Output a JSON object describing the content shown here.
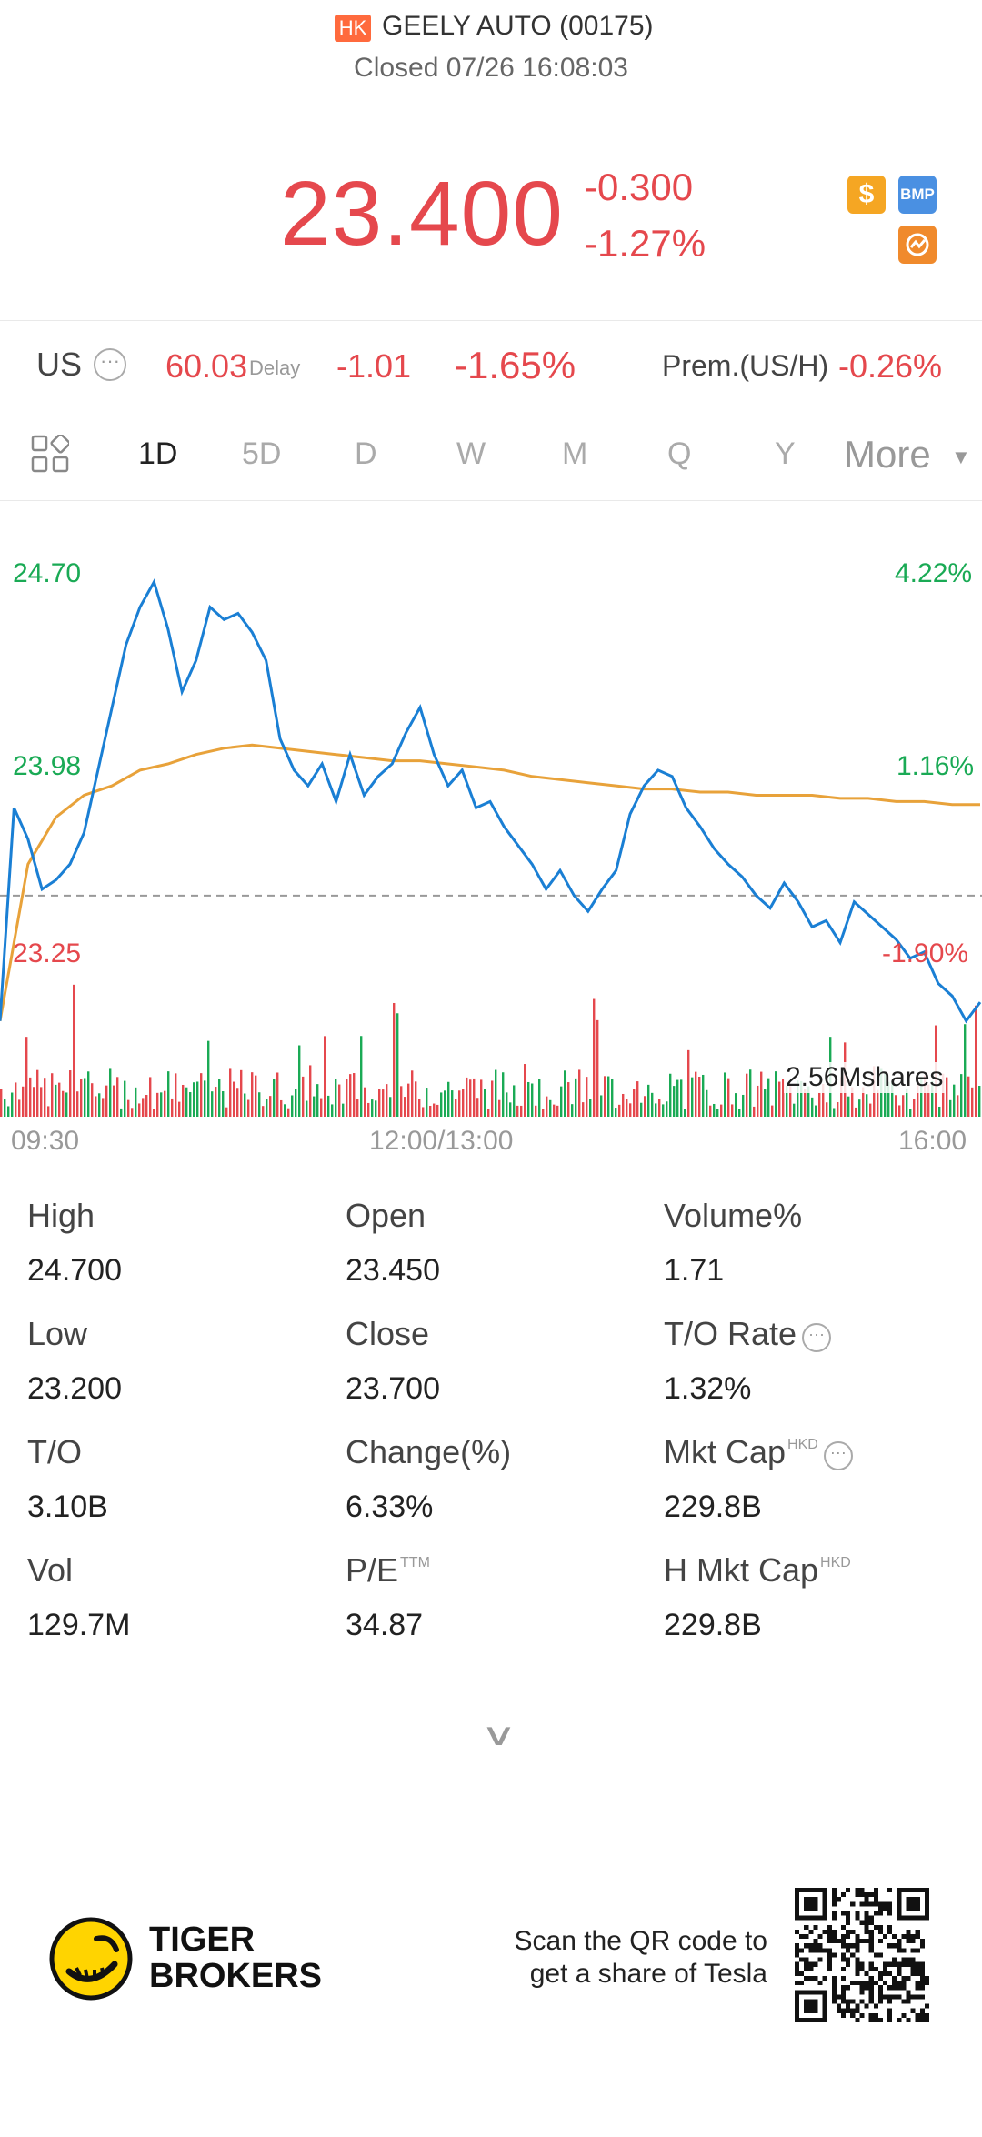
{
  "header": {
    "market_badge": "HK",
    "stock_name": "GEELY AUTO (00175)",
    "status": "Closed 07/26 16:08:03",
    "price": "23.400",
    "change": "-0.300",
    "change_pct": "-1.27%",
    "icons": [
      "dollar-icon",
      "bmp-icon",
      "orange-chart-icon"
    ]
  },
  "us_row": {
    "label": "US",
    "price": "60.03",
    "delay_label": "Delay",
    "change": "-1.01",
    "change_pct": "-1.65%",
    "premium_label": "Prem.(US/H)",
    "premium_value": "-0.26%"
  },
  "tabs": {
    "items": [
      "1D",
      "5D",
      "D",
      "W",
      "M",
      "Q",
      "Y"
    ],
    "active": "1D",
    "more_label": "More"
  },
  "chart": {
    "y_high": "24.70",
    "y_mid": "23.98",
    "y_low": "23.25",
    "pct_high": "4.22%",
    "pct_mid": "1.16%",
    "pct_low": "-1.90%",
    "volume_label": "2.56Mshares",
    "time_start": "09:30",
    "time_mid": "12:00/13:00",
    "time_end": "16:00"
  },
  "chart_data": {
    "type": "line",
    "series": [
      {
        "color": "#1a7fd4",
        "values": [
          23.3,
          23.98,
          23.88,
          23.72,
          23.75,
          23.8,
          23.9,
          24.1,
          24.3,
          24.5,
          24.62,
          24.7,
          24.55,
          24.35,
          24.45,
          24.62,
          24.58,
          24.6,
          24.54,
          24.45,
          24.2,
          24.1,
          24.05,
          24.12,
          24.0,
          24.15,
          24.02,
          24.08,
          24.12,
          24.22,
          24.3,
          24.15,
          24.05,
          24.1,
          23.98,
          24.0,
          23.92,
          23.86,
          23.8,
          23.72,
          23.78,
          23.7,
          23.65,
          23.72,
          23.78,
          23.96,
          24.05,
          24.1,
          24.08,
          23.98,
          23.92,
          23.85,
          23.8,
          23.76,
          23.7,
          23.66,
          23.74,
          23.68,
          23.6,
          23.62,
          23.55,
          23.68,
          23.64,
          23.6,
          23.56,
          23.5,
          23.52,
          23.42,
          23.38,
          23.3,
          23.36
        ]
      },
      {
        "color": "#e8a23a",
        "values": [
          23.3,
          23.8,
          23.95,
          24.02,
          24.05,
          24.1,
          24.12,
          24.15,
          24.17,
          24.18,
          24.17,
          24.16,
          24.15,
          24.14,
          24.13,
          24.13,
          24.12,
          24.11,
          24.1,
          24.08,
          24.07,
          24.06,
          24.05,
          24.04,
          24.04,
          24.03,
          24.03,
          24.02,
          24.02,
          24.02,
          24.01,
          24.01,
          24.0,
          24.0,
          23.99,
          23.99
        ]
      }
    ],
    "ylim": [
      23.25,
      24.7
    ],
    "previous_close": 23.7,
    "volume_label": "2.56Mshares"
  },
  "stats": [
    [
      {
        "label": "High",
        "value": "24.700"
      },
      {
        "label": "Open",
        "value": "23.450"
      },
      {
        "label": "Volume%",
        "value": "1.71"
      }
    ],
    [
      {
        "label": "Low",
        "value": "23.200"
      },
      {
        "label": "Close",
        "value": "23.700"
      },
      {
        "label": "T/O Rate",
        "value": "1.32%"
      }
    ],
    [
      {
        "label": "T/O",
        "value": "3.10B"
      },
      {
        "label": "Change(%)",
        "value": "6.33%"
      },
      {
        "label": "Mkt Cap",
        "sup": "HKD",
        "value": "229.8B"
      }
    ],
    [
      {
        "label": "Vol",
        "value": "129.7M"
      },
      {
        "label": "P/E",
        "sup": "TTM",
        "value": "34.87"
      },
      {
        "label": "H Mkt Cap",
        "sup": "HKD",
        "value": "229.8B"
      }
    ]
  ],
  "footer": {
    "brand_line1": "TIGER",
    "brand_line2": "BROKERS",
    "promo_line1": "Scan the QR code to",
    "promo_line2": "get a share of Tesla"
  },
  "colors": {
    "up": "#1aaa55",
    "down": "#e5484d",
    "price_line": "#1a7fd4",
    "avg_line": "#e8a23a",
    "hk_badge": "#ff6a3d"
  }
}
